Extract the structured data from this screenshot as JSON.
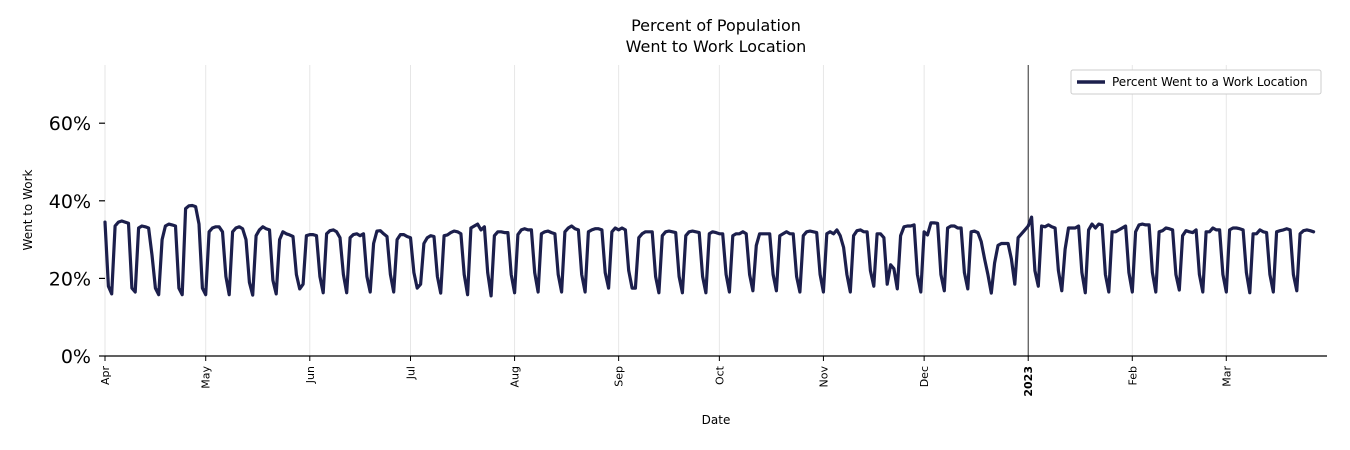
{
  "chart_data": {
    "type": "line",
    "title": [
      "Percent of Population",
      "Went to Work Location"
    ],
    "xlabel": "Date",
    "ylabel": "Went to Work",
    "ylim": [
      0,
      75
    ],
    "yticks": [
      0,
      20,
      40,
      60
    ],
    "ytick_labels": [
      "0%",
      "20%",
      "40%",
      "60%"
    ],
    "x_start": "2022-04-01",
    "x_days": 365,
    "xticks": [
      {
        "label": "Apr",
        "day": 0,
        "bold": false
      },
      {
        "label": "May",
        "day": 30,
        "bold": false
      },
      {
        "label": "Jun",
        "day": 61,
        "bold": false
      },
      {
        "label": "Jul",
        "day": 91,
        "bold": false
      },
      {
        "label": "Aug",
        "day": 122,
        "bold": false
      },
      {
        "label": "Sep",
        "day": 153,
        "bold": false
      },
      {
        "label": "Oct",
        "day": 183,
        "bold": false
      },
      {
        "label": "Nov",
        "day": 214,
        "bold": false
      },
      {
        "label": "Dec",
        "day": 244,
        "bold": false
      },
      {
        "label": "2023",
        "day": 275,
        "bold": true
      },
      {
        "label": "Feb",
        "day": 306,
        "bold": false
      },
      {
        "label": "Mar",
        "day": 334,
        "bold": false
      }
    ],
    "vline_day": 275,
    "grid": "vertical",
    "legend_position": "top-right",
    "series": [
      {
        "name": "Percent Went to a Work Location",
        "color": "#1c1f4c",
        "values": [
          34.5,
          18,
          16,
          33.5,
          34.5,
          34.8,
          34.5,
          34.2,
          17.5,
          16.5,
          33,
          33.5,
          33.3,
          33,
          26,
          17.5,
          15.8,
          30,
          33.5,
          34,
          33.8,
          33.5,
          17.5,
          15.8,
          38,
          38.7,
          38.8,
          38.5,
          34,
          17.5,
          15.8,
          32,
          33,
          33.3,
          33.3,
          32,
          20.5,
          15.8,
          32,
          33,
          33.3,
          32.8,
          30,
          19,
          15.7,
          31,
          32.5,
          33.3,
          32.8,
          32.5,
          19.5,
          16,
          30,
          32,
          31.5,
          31.2,
          30.8,
          21,
          17.3,
          18.5,
          31,
          31.3,
          31.3,
          31,
          20.5,
          16.3,
          31.5,
          32.3,
          32.5,
          32,
          30.5,
          21,
          16.3,
          30.5,
          31.3,
          31.5,
          31,
          31.5,
          20.5,
          16.5,
          29,
          32.2,
          32.3,
          31.5,
          30.8,
          21,
          16.5,
          30,
          31.3,
          31.3,
          30.8,
          30.5,
          21.5,
          17.5,
          18.5,
          29,
          30.5,
          31,
          30.8,
          20.5,
          16.2,
          31,
          31.2,
          31.8,
          32.2,
          32,
          31.5,
          21,
          15.8,
          33,
          33.5,
          34,
          32.5,
          33.3,
          21.5,
          15.5,
          31,
          32,
          32,
          31.8,
          31.8,
          21,
          16.3,
          31.3,
          32.5,
          32.8,
          32.5,
          32.5,
          21.5,
          16.5,
          31.5,
          32,
          32.2,
          31.8,
          31.5,
          21,
          16.5,
          32,
          33,
          33.5,
          32.8,
          32.5,
          21,
          16.5,
          32,
          32.5,
          32.8,
          32.8,
          32.5,
          21.5,
          17.5,
          32,
          33,
          32.5,
          33,
          32.5,
          22,
          17.5,
          17.5,
          30.5,
          31.5,
          32,
          32,
          32,
          20.5,
          16.3,
          31,
          32,
          32.2,
          32,
          31.8,
          20.5,
          16.3,
          31,
          32,
          32.2,
          32,
          31.8,
          20.5,
          16.3,
          31.5,
          32,
          31.8,
          31.5,
          31.5,
          21,
          16.5,
          31,
          31.5,
          31.5,
          32,
          31.5,
          21,
          16.8,
          28.5,
          31.5,
          31.5,
          31.5,
          31.5,
          21,
          16.8,
          31,
          31.5,
          32,
          31.5,
          31.5,
          20.5,
          16.5,
          31,
          32,
          32.2,
          32,
          31.8,
          21,
          16.5,
          31.5,
          32,
          31.5,
          32.5,
          31,
          28,
          21,
          16.5,
          31,
          32.3,
          32.5,
          32,
          32,
          22,
          18,
          31.5,
          31.5,
          30.5,
          18.5,
          23.5,
          22.5,
          17.3,
          31,
          33.3,
          33.5,
          33.5,
          33.8,
          21,
          16.5,
          32,
          31.2,
          34.3,
          34.3,
          34.2,
          21,
          16.8,
          33,
          33.5,
          33.5,
          33,
          33,
          21.5,
          17.3,
          32,
          32.2,
          31.8,
          29.5,
          25,
          21,
          16.2,
          24,
          28.5,
          29,
          29,
          29,
          25,
          18.5,
          30.5,
          31.5,
          32.5,
          33.5,
          35.8,
          22,
          18,
          33.5,
          33.3,
          33.8,
          33.3,
          33,
          22,
          16.8,
          27.5,
          33,
          33,
          33,
          33.5,
          21.5,
          16.3,
          32.5,
          34,
          33,
          34,
          33.8,
          21,
          16.5,
          32,
          32,
          32.5,
          33,
          33.5,
          21.5,
          16.5,
          32,
          33.8,
          34,
          33.8,
          33.8,
          21.5,
          16.5,
          32,
          32.3,
          33,
          32.8,
          32.5,
          21,
          17,
          31,
          32.3,
          32,
          31.8,
          32.5,
          21,
          16.5,
          32,
          32,
          33,
          32.5,
          32.5,
          21,
          16.5,
          32.5,
          33,
          33,
          32.8,
          32.5,
          21.5,
          16.3,
          31.5,
          31.5,
          32.5,
          32,
          31.8,
          21,
          16.5,
          32,
          32.3,
          32.5,
          32.8,
          32.5,
          21,
          16.8,
          31.5,
          32.3,
          32.5,
          32.3,
          32
        ]
      }
    ]
  }
}
